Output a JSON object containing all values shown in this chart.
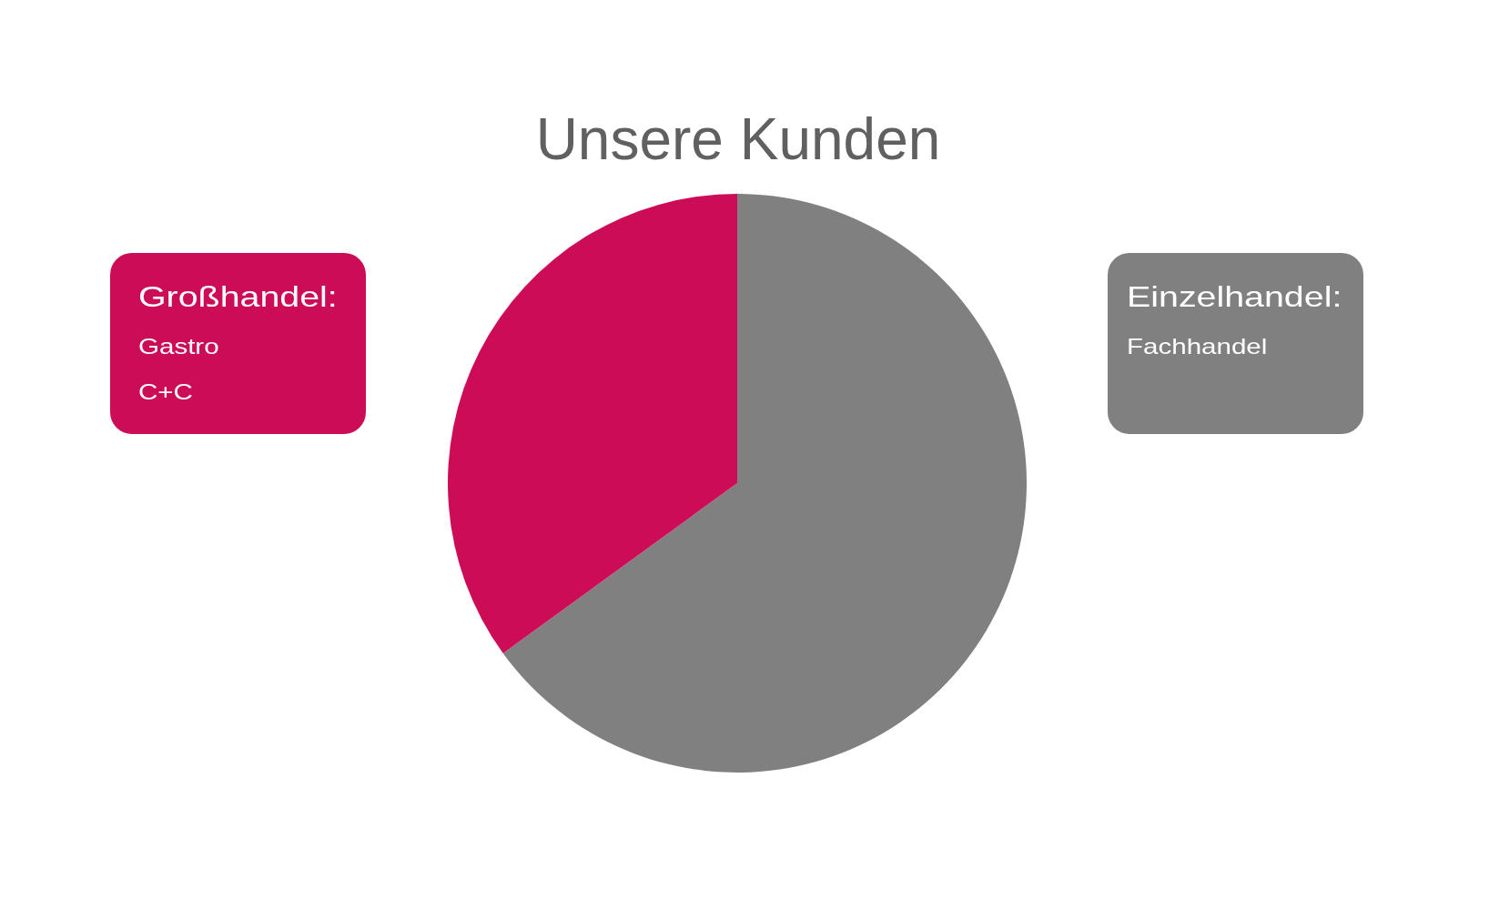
{
  "chart_data": {
    "type": "pie",
    "title": "Unsere Kunden",
    "categories": [
      "Einzelhandel:\nFachhandel",
      "Großhandel:\nGastro\nC+C"
    ],
    "values": [
      65,
      35
    ],
    "colors": [
      "#808080",
      "#cd0c58"
    ]
  }
}
